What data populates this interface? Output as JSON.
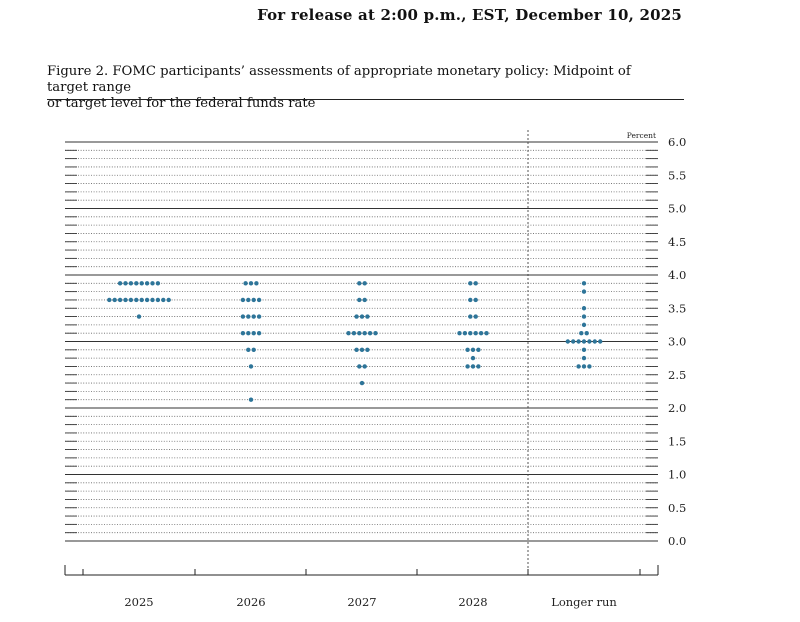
{
  "header": {
    "release": "For release at 2:00 p.m., EST, December 10, 2025",
    "caption_line1": "Figure 2. FOMC participants’ assessments of appropriate monetary policy: Midpoint of target range",
    "caption_line2": "or target level for the federal funds rate"
  },
  "chart_data": {
    "type": "scatter",
    "unit_label": "Percent",
    "ylim": [
      0,
      6.0
    ],
    "y_ticks": [
      "0.0",
      "0.5",
      "1.0",
      "1.5",
      "2.0",
      "2.5",
      "3.0",
      "3.5",
      "4.0",
      "4.5",
      "5.0",
      "5.5",
      "6.0"
    ],
    "grid_step": 0.125,
    "categories": [
      "2025",
      "2026",
      "2027",
      "2028",
      "Longer run"
    ],
    "dot_color": "#2e7599",
    "dots": [
      {
        "x": "2025",
        "y": 3.875,
        "count": 8
      },
      {
        "x": "2025",
        "y": 3.625,
        "count": 12
      },
      {
        "x": "2025",
        "y": 3.375,
        "count": 1
      },
      {
        "x": "2026",
        "y": 3.875,
        "count": 3
      },
      {
        "x": "2026",
        "y": 3.625,
        "count": 4
      },
      {
        "x": "2026",
        "y": 3.375,
        "count": 4
      },
      {
        "x": "2026",
        "y": 3.125,
        "count": 4
      },
      {
        "x": "2026",
        "y": 2.875,
        "count": 2
      },
      {
        "x": "2026",
        "y": 2.625,
        "count": 1
      },
      {
        "x": "2026",
        "y": 2.125,
        "count": 1
      },
      {
        "x": "2027",
        "y": 3.875,
        "count": 2
      },
      {
        "x": "2027",
        "y": 3.625,
        "count": 2
      },
      {
        "x": "2027",
        "y": 3.375,
        "count": 3
      },
      {
        "x": "2027",
        "y": 3.125,
        "count": 6
      },
      {
        "x": "2027",
        "y": 2.875,
        "count": 3
      },
      {
        "x": "2027",
        "y": 2.625,
        "count": 2
      },
      {
        "x": "2027",
        "y": 2.375,
        "count": 1
      },
      {
        "x": "2028",
        "y": 3.875,
        "count": 2
      },
      {
        "x": "2028",
        "y": 3.625,
        "count": 2
      },
      {
        "x": "2028",
        "y": 3.375,
        "count": 2
      },
      {
        "x": "2028",
        "y": 3.125,
        "count": 6
      },
      {
        "x": "2028",
        "y": 2.875,
        "count": 3
      },
      {
        "x": "2028",
        "y": 2.75,
        "count": 1
      },
      {
        "x": "2028",
        "y": 2.625,
        "count": 3
      },
      {
        "x": "Longer run",
        "y": 3.875,
        "count": 1
      },
      {
        "x": "Longer run",
        "y": 3.75,
        "count": 1
      },
      {
        "x": "Longer run",
        "y": 3.5,
        "count": 1
      },
      {
        "x": "Longer run",
        "y": 3.375,
        "count": 1
      },
      {
        "x": "Longer run",
        "y": 3.25,
        "count": 1
      },
      {
        "x": "Longer run",
        "y": 3.125,
        "count": 2
      },
      {
        "x": "Longer run",
        "y": 3.0,
        "count": 7
      },
      {
        "x": "Longer run",
        "y": 2.875,
        "count": 1
      },
      {
        "x": "Longer run",
        "y": 2.75,
        "count": 1
      },
      {
        "x": "Longer run",
        "y": 2.625,
        "count": 3
      }
    ]
  }
}
